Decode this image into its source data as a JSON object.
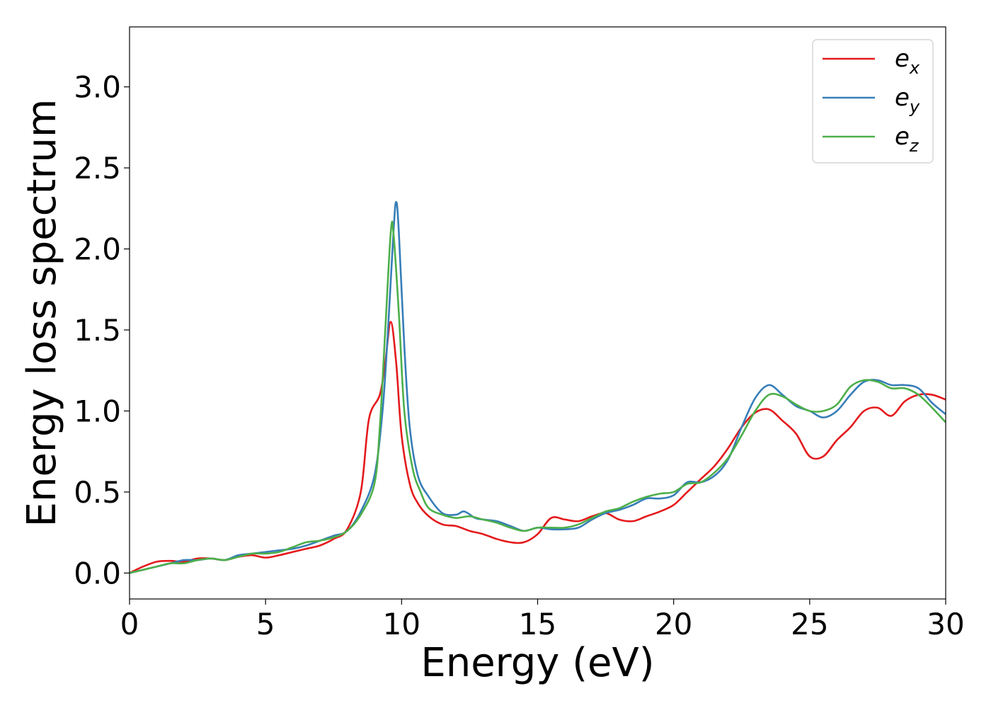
{
  "chart_data": {
    "type": "line",
    "title": "",
    "xlabel": "Energy (eV)",
    "ylabel": "Energy loss spectrum",
    "xlim": [
      0,
      30
    ],
    "ylim": [
      -0.16,
      3.37
    ],
    "x_ticks": [
      0,
      5,
      10,
      15,
      20,
      25,
      30
    ],
    "x_tick_labels": [
      "0",
      "5",
      "10",
      "15",
      "20",
      "25",
      "30"
    ],
    "y_ticks": [
      0.0,
      0.5,
      1.0,
      1.5,
      2.0,
      2.5,
      3.0
    ],
    "y_tick_labels": [
      "0.0",
      "0.5",
      "1.0",
      "1.5",
      "2.0",
      "2.5",
      "3.0"
    ],
    "grid": false,
    "legend_position": "top-right",
    "series": [
      {
        "name": "e_x",
        "label_base": "e",
        "label_sub": "x",
        "color": "#e41a1c",
        "points": [
          [
            0,
            0
          ],
          [
            0.5,
            0.04
          ],
          [
            1,
            0.07
          ],
          [
            1.5,
            0.075
          ],
          [
            2,
            0.07
          ],
          [
            2.5,
            0.09
          ],
          [
            3,
            0.09
          ],
          [
            3.5,
            0.08
          ],
          [
            4,
            0.1
          ],
          [
            4.5,
            0.11
          ],
          [
            5,
            0.095
          ],
          [
            5.5,
            0.11
          ],
          [
            6,
            0.13
          ],
          [
            6.5,
            0.15
          ],
          [
            7,
            0.17
          ],
          [
            7.5,
            0.21
          ],
          [
            8,
            0.27
          ],
          [
            8.5,
            0.5
          ],
          [
            8.8,
            0.95
          ],
          [
            9.2,
            1.1
          ],
          [
            9.4,
            1.3
          ],
          [
            9.6,
            1.55
          ],
          [
            9.8,
            1.3
          ],
          [
            10,
            0.85
          ],
          [
            10.3,
            0.55
          ],
          [
            10.6,
            0.43
          ],
          [
            11,
            0.35
          ],
          [
            11.5,
            0.3
          ],
          [
            12,
            0.29
          ],
          [
            12.5,
            0.26
          ],
          [
            13,
            0.24
          ],
          [
            13.5,
            0.21
          ],
          [
            14,
            0.19
          ],
          [
            14.5,
            0.19
          ],
          [
            15,
            0.24
          ],
          [
            15.5,
            0.34
          ],
          [
            16,
            0.33
          ],
          [
            16.5,
            0.32
          ],
          [
            17,
            0.35
          ],
          [
            17.5,
            0.37
          ],
          [
            18,
            0.33
          ],
          [
            18.5,
            0.32
          ],
          [
            19,
            0.35
          ],
          [
            19.5,
            0.38
          ],
          [
            20,
            0.42
          ],
          [
            20.5,
            0.5
          ],
          [
            21,
            0.58
          ],
          [
            21.5,
            0.66
          ],
          [
            22,
            0.77
          ],
          [
            22.5,
            0.9
          ],
          [
            23,
            0.99
          ],
          [
            23.5,
            1.01
          ],
          [
            24,
            0.94
          ],
          [
            24.5,
            0.86
          ],
          [
            25,
            0.72
          ],
          [
            25.5,
            0.72
          ],
          [
            26,
            0.82
          ],
          [
            26.5,
            0.9
          ],
          [
            27,
            1.0
          ],
          [
            27.5,
            1.02
          ],
          [
            28,
            0.97
          ],
          [
            28.5,
            1.06
          ],
          [
            29,
            1.1
          ],
          [
            29.5,
            1.1
          ],
          [
            30,
            1.07
          ]
        ]
      },
      {
        "name": "e_y",
        "label_base": "e",
        "label_sub": "y",
        "color": "#377eb8",
        "points": [
          [
            0,
            0
          ],
          [
            0.5,
            0.02
          ],
          [
            1,
            0.04
          ],
          [
            1.5,
            0.06
          ],
          [
            2,
            0.08
          ],
          [
            2.5,
            0.08
          ],
          [
            3,
            0.09
          ],
          [
            3.5,
            0.08
          ],
          [
            4,
            0.11
          ],
          [
            4.5,
            0.12
          ],
          [
            5,
            0.13
          ],
          [
            5.5,
            0.14
          ],
          [
            6,
            0.15
          ],
          [
            6.5,
            0.17
          ],
          [
            7,
            0.2
          ],
          [
            7.5,
            0.23
          ],
          [
            8,
            0.26
          ],
          [
            8.5,
            0.38
          ],
          [
            9,
            0.6
          ],
          [
            9.3,
            1.0
          ],
          [
            9.5,
            1.5
          ],
          [
            9.7,
            2.1
          ],
          [
            9.8,
            2.29
          ],
          [
            9.9,
            2.1
          ],
          [
            10.1,
            1.4
          ],
          [
            10.3,
            0.9
          ],
          [
            10.6,
            0.6
          ],
          [
            11,
            0.47
          ],
          [
            11.5,
            0.37
          ],
          [
            12,
            0.36
          ],
          [
            12.3,
            0.38
          ],
          [
            12.7,
            0.34
          ],
          [
            13,
            0.33
          ],
          [
            13.5,
            0.32
          ],
          [
            14,
            0.29
          ],
          [
            14.5,
            0.26
          ],
          [
            15,
            0.28
          ],
          [
            15.5,
            0.27
          ],
          [
            16,
            0.27
          ],
          [
            16.5,
            0.28
          ],
          [
            17,
            0.33
          ],
          [
            17.5,
            0.37
          ],
          [
            18,
            0.39
          ],
          [
            18.5,
            0.42
          ],
          [
            19,
            0.46
          ],
          [
            19.5,
            0.46
          ],
          [
            20,
            0.48
          ],
          [
            20.5,
            0.56
          ],
          [
            21,
            0.56
          ],
          [
            21.5,
            0.6
          ],
          [
            22,
            0.7
          ],
          [
            22.5,
            0.9
          ],
          [
            23,
            1.08
          ],
          [
            23.5,
            1.16
          ],
          [
            24,
            1.1
          ],
          [
            24.5,
            1.03
          ],
          [
            25,
            1.0
          ],
          [
            25.5,
            0.96
          ],
          [
            26,
            1.0
          ],
          [
            26.5,
            1.1
          ],
          [
            27,
            1.18
          ],
          [
            27.5,
            1.19
          ],
          [
            28,
            1.16
          ],
          [
            28.5,
            1.16
          ],
          [
            29,
            1.14
          ],
          [
            29.5,
            1.05
          ],
          [
            30,
            0.98
          ]
        ]
      },
      {
        "name": "e_z",
        "label_base": "e",
        "label_sub": "z",
        "color": "#4daf4a",
        "points": [
          [
            0,
            0
          ],
          [
            0.5,
            0.02
          ],
          [
            1,
            0.04
          ],
          [
            1.5,
            0.06
          ],
          [
            2,
            0.06
          ],
          [
            2.5,
            0.08
          ],
          [
            3,
            0.09
          ],
          [
            3.5,
            0.08
          ],
          [
            4,
            0.1
          ],
          [
            4.5,
            0.12
          ],
          [
            5,
            0.12
          ],
          [
            5.5,
            0.13
          ],
          [
            6,
            0.16
          ],
          [
            6.5,
            0.19
          ],
          [
            7,
            0.2
          ],
          [
            7.5,
            0.22
          ],
          [
            8,
            0.26
          ],
          [
            8.5,
            0.36
          ],
          [
            9,
            0.55
          ],
          [
            9.2,
            0.9
          ],
          [
            9.4,
            1.5
          ],
          [
            9.6,
            2.1
          ],
          [
            9.7,
            2.1
          ],
          [
            9.9,
            1.6
          ],
          [
            10.1,
            1.0
          ],
          [
            10.4,
            0.65
          ],
          [
            10.7,
            0.5
          ],
          [
            11,
            0.4
          ],
          [
            11.5,
            0.36
          ],
          [
            12,
            0.34
          ],
          [
            12.5,
            0.35
          ],
          [
            13,
            0.33
          ],
          [
            13.5,
            0.31
          ],
          [
            14,
            0.28
          ],
          [
            14.5,
            0.26
          ],
          [
            15,
            0.28
          ],
          [
            15.5,
            0.28
          ],
          [
            16,
            0.28
          ],
          [
            16.5,
            0.3
          ],
          [
            17,
            0.34
          ],
          [
            17.5,
            0.38
          ],
          [
            18,
            0.4
          ],
          [
            18.5,
            0.44
          ],
          [
            19,
            0.47
          ],
          [
            19.5,
            0.49
          ],
          [
            20,
            0.5
          ],
          [
            20.5,
            0.55
          ],
          [
            21,
            0.56
          ],
          [
            21.5,
            0.62
          ],
          [
            22,
            0.71
          ],
          [
            22.5,
            0.85
          ],
          [
            23,
            1.0
          ],
          [
            23.5,
            1.1
          ],
          [
            24,
            1.09
          ],
          [
            24.5,
            1.04
          ],
          [
            25,
            1.0
          ],
          [
            25.5,
            1.0
          ],
          [
            26,
            1.04
          ],
          [
            26.5,
            1.15
          ],
          [
            27,
            1.19
          ],
          [
            27.5,
            1.18
          ],
          [
            28,
            1.14
          ],
          [
            28.5,
            1.14
          ],
          [
            29,
            1.1
          ],
          [
            29.5,
            1.02
          ],
          [
            30,
            0.93
          ]
        ]
      }
    ]
  }
}
